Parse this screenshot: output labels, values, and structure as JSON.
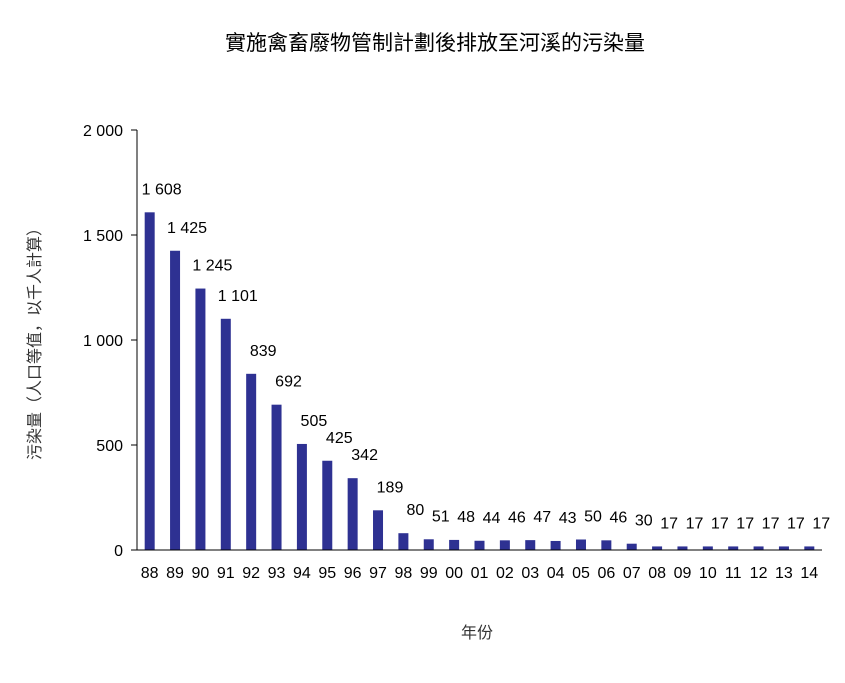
{
  "chart_data": {
    "type": "bar",
    "title": "實施禽畜廢物管制計劃後排放至河溪的污染量",
    "xlabel": "年份",
    "ylabel": "污染量（人口等值，以千人計算）",
    "ylim": [
      0,
      2000
    ],
    "yticks": [
      0,
      500,
      1000,
      1500,
      2000
    ],
    "ytick_labels": [
      "0",
      "500",
      "1 000",
      "1 500",
      "2 000"
    ],
    "categories": [
      "88",
      "89",
      "90",
      "91",
      "92",
      "93",
      "94",
      "95",
      "96",
      "97",
      "98",
      "99",
      "00",
      "01",
      "02",
      "03",
      "04",
      "05",
      "06",
      "07",
      "08",
      "09",
      "10",
      "11",
      "12",
      "13",
      "14"
    ],
    "values": [
      1608,
      1425,
      1245,
      1101,
      839,
      692,
      505,
      425,
      342,
      189,
      80,
      51,
      48,
      44,
      46,
      47,
      43,
      50,
      46,
      30,
      17,
      17,
      17,
      17,
      17,
      17,
      17
    ],
    "value_labels": [
      "1 608",
      "1 425",
      "1 245",
      "1 101",
      "839",
      "692",
      "505",
      "425",
      "342",
      "189",
      "80",
      "51",
      "48",
      "44",
      "46",
      "47",
      "43",
      "50",
      "46",
      "30",
      "17",
      "17",
      "17",
      "17",
      "17",
      "17",
      "17"
    ],
    "bar_color": "#2E3192",
    "grid": false,
    "legend": "none"
  }
}
